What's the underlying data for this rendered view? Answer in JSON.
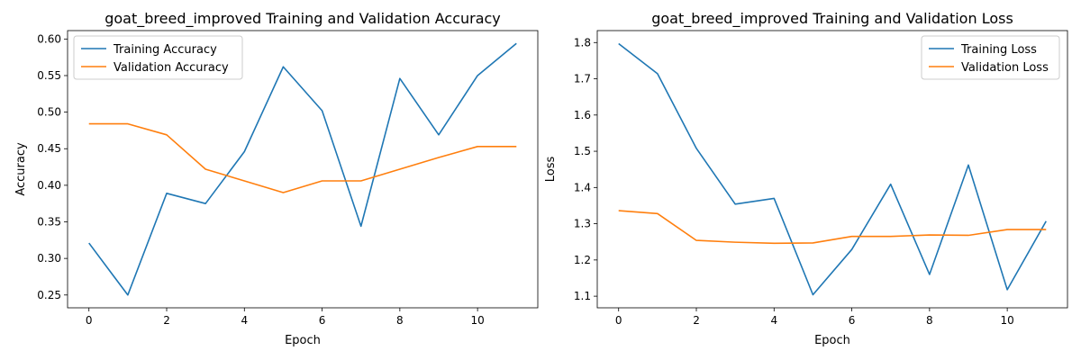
{
  "chart_data": [
    {
      "type": "line",
      "title": "goat_breed_improved Training and Validation Accuracy",
      "xlabel": "Epoch",
      "ylabel": "Accuracy",
      "x": [
        0,
        1,
        2,
        3,
        4,
        5,
        6,
        7,
        8,
        9,
        10,
        11
      ],
      "xlim": [
        -0.55,
        11.55
      ],
      "ylim": [
        0.2325,
        0.6115
      ],
      "xticks": [
        0,
        2,
        4,
        6,
        8,
        10
      ],
      "xtick_labels": [
        "0",
        "2",
        "4",
        "6",
        "8",
        "10"
      ],
      "yticks": [
        0.25,
        0.3,
        0.35,
        0.4,
        0.45,
        0.5,
        0.55,
        0.6
      ],
      "ytick_labels": [
        "0.25",
        "0.30",
        "0.35",
        "0.40",
        "0.45",
        "0.50",
        "0.55",
        "0.60"
      ],
      "grid": false,
      "legend_position": "top-left",
      "series": [
        {
          "name": "Training Accuracy",
          "color": "#1f77b4",
          "values": [
            0.321,
            0.25,
            0.389,
            0.375,
            0.446,
            0.562,
            0.502,
            0.344,
            0.546,
            0.469,
            0.55,
            0.594
          ]
        },
        {
          "name": "Validation Accuracy",
          "color": "#ff7f0e",
          "values": [
            0.484,
            0.484,
            0.469,
            0.422,
            0.406,
            0.39,
            0.406,
            0.406,
            0.422,
            0.438,
            0.453,
            0.453
          ]
        }
      ]
    },
    {
      "type": "line",
      "title": "goat_breed_improved Training and Validation Loss",
      "xlabel": "Epoch",
      "ylabel": "Loss",
      "x": [
        0,
        1,
        2,
        3,
        4,
        5,
        6,
        7,
        8,
        9,
        10,
        11
      ],
      "xlim": [
        -0.55,
        11.55
      ],
      "ylim": [
        1.068,
        1.833
      ],
      "xticks": [
        0,
        2,
        4,
        6,
        8,
        10
      ],
      "xtick_labels": [
        "0",
        "2",
        "4",
        "6",
        "8",
        "10"
      ],
      "yticks": [
        1.1,
        1.2,
        1.3,
        1.4,
        1.5,
        1.6,
        1.7,
        1.8
      ],
      "ytick_labels": [
        "1.1",
        "1.2",
        "1.3",
        "1.4",
        "1.5",
        "1.6",
        "1.7",
        "1.8"
      ],
      "grid": false,
      "legend_position": "top-right",
      "series": [
        {
          "name": "Training Loss",
          "color": "#1f77b4",
          "values": [
            1.797,
            1.714,
            1.508,
            1.354,
            1.37,
            1.104,
            1.229,
            1.409,
            1.16,
            1.462,
            1.118,
            1.307
          ]
        },
        {
          "name": "Validation Loss",
          "color": "#ff7f0e",
          "values": [
            1.336,
            1.328,
            1.254,
            1.249,
            1.246,
            1.247,
            1.265,
            1.265,
            1.269,
            1.268,
            1.284,
            1.284
          ]
        }
      ]
    }
  ]
}
